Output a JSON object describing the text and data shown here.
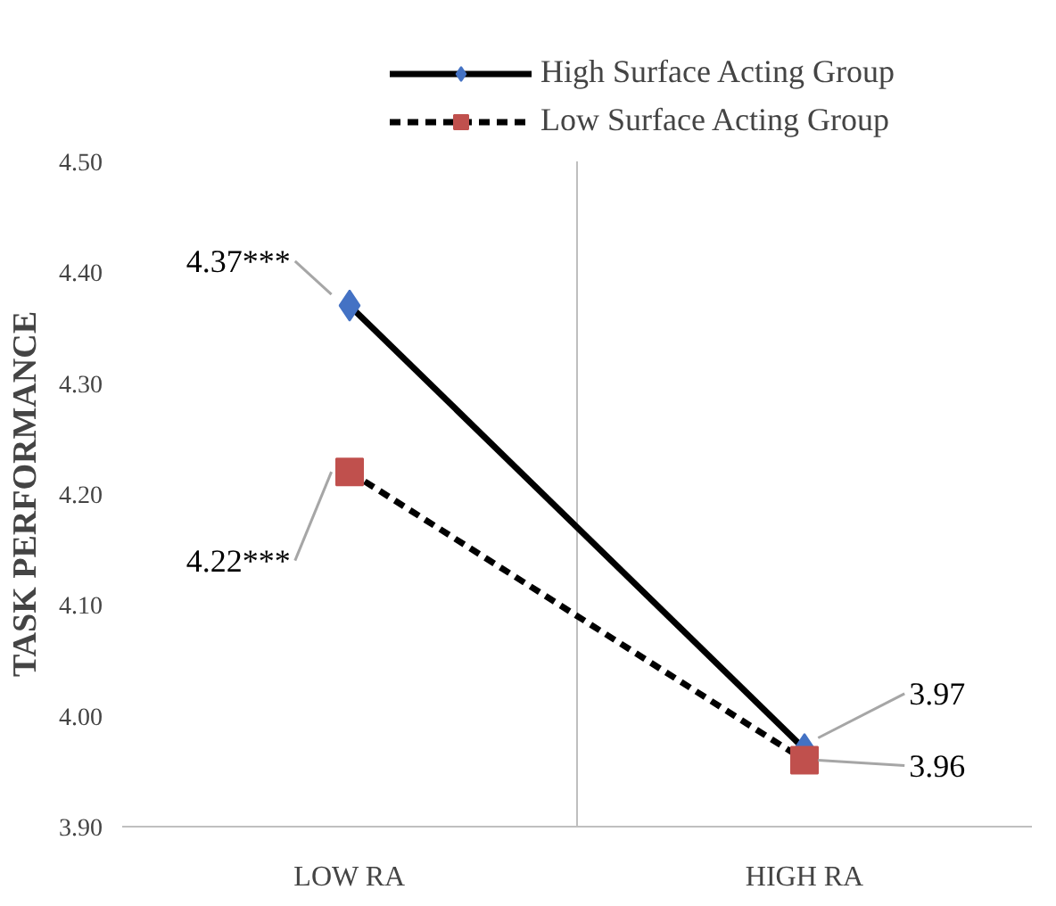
{
  "chart_data": {
    "type": "line",
    "ylabel": "TASK PERFORMANCE",
    "categories": [
      "LOW RA",
      "HIGH RA"
    ],
    "ylim": [
      3.9,
      4.5
    ],
    "yticks": [
      {
        "value": 3.9,
        "label": "3.90"
      },
      {
        "value": 4.0,
        "label": "4.00"
      },
      {
        "value": 4.1,
        "label": "4.10"
      },
      {
        "value": 4.2,
        "label": "4.20"
      },
      {
        "value": 4.3,
        "label": "4.30"
      },
      {
        "value": 4.4,
        "label": "4.40"
      },
      {
        "value": 4.5,
        "label": "4.50"
      }
    ],
    "grid": "x",
    "legend": "top",
    "series": [
      {
        "name": "High Surface Acting Group",
        "color": "#4472c4",
        "marker": "diamond",
        "line_style": "solid",
        "values": [
          4.37,
          3.97
        ],
        "value_labels": [
          "4.37***",
          "3.97"
        ]
      },
      {
        "name": "Low Surface Acting Group",
        "color": "#c0504d",
        "marker": "square",
        "line_style": "dashed",
        "values": [
          4.22,
          3.96
        ],
        "value_labels": [
          "4.22***",
          "3.96"
        ]
      }
    ]
  }
}
